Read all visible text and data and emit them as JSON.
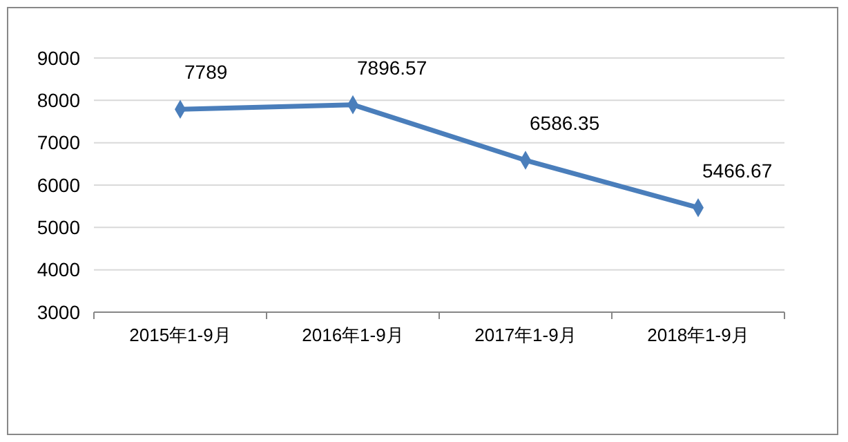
{
  "chart_data": {
    "type": "line",
    "categories": [
      "2015年1-9月",
      "2016年1-9月",
      "2017年1-9月",
      "2018年1-9月"
    ],
    "series": [
      {
        "color": "#4a7ebb",
        "values": [
          7789,
          7896.57,
          6586.35,
          5466.67
        ]
      }
    ],
    "ylim": [
      3000,
      9000
    ],
    "yticks": [
      3000,
      4000,
      5000,
      6000,
      7000,
      8000,
      9000
    ],
    "grid": "y",
    "marker": "diamond",
    "line_style": "solid",
    "data_labels": true
  }
}
